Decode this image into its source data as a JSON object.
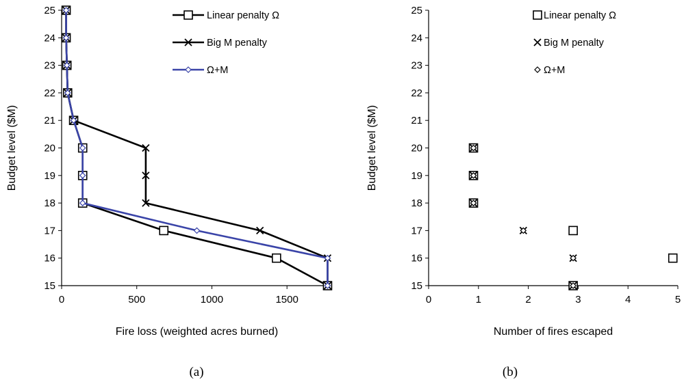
{
  "chart_data": [
    {
      "type": "line",
      "panel_label": "(a)",
      "xlabel": "Fire loss (weighted acres burned)",
      "ylabel": "Budget level ($M)",
      "xlim": [
        0,
        1800
      ],
      "ylim": [
        15,
        25
      ],
      "xticks": [
        "0",
        "500",
        "1000",
        "1500"
      ],
      "yticks": [
        "15",
        "16",
        "17",
        "18",
        "19",
        "20",
        "21",
        "22",
        "23",
        "24",
        "25"
      ],
      "grid": false,
      "legend_position": "top-right",
      "series": [
        {
          "name": "Linear penalty Ω",
          "color": "#000000",
          "marker": "square",
          "points": [
            [
              30,
              25
            ],
            [
              30,
              24
            ],
            [
              35,
              23
            ],
            [
              40,
              22
            ],
            [
              80,
              21
            ],
            [
              140,
              20
            ],
            [
              140,
              19
            ],
            [
              140,
              18
            ],
            [
              680,
              17
            ],
            [
              1430,
              16
            ],
            [
              1770,
              15
            ]
          ]
        },
        {
          "name": "Big M penalty",
          "color": "#000000",
          "marker": "x",
          "points": [
            [
              30,
              25
            ],
            [
              30,
              24
            ],
            [
              35,
              23
            ],
            [
              40,
              22
            ],
            [
              80,
              21
            ],
            [
              560,
              20
            ],
            [
              560,
              19
            ],
            [
              560,
              18
            ],
            [
              1320,
              17
            ],
            [
              1770,
              16
            ],
            [
              1770,
              15
            ]
          ]
        },
        {
          "name": "Ω+M",
          "color": "#3a44a8",
          "marker": "diamond",
          "points": [
            [
              30,
              25
            ],
            [
              30,
              24
            ],
            [
              35,
              23
            ],
            [
              40,
              22
            ],
            [
              80,
              21
            ],
            [
              140,
              20
            ],
            [
              140,
              19
            ],
            [
              140,
              18
            ],
            [
              900,
              17
            ],
            [
              1770,
              16
            ],
            [
              1770,
              15
            ]
          ]
        }
      ]
    },
    {
      "type": "scatter",
      "panel_label": "(b)",
      "xlabel": "Number of fires escaped",
      "ylabel": "Budget level ($M)",
      "xlim": [
        0,
        5
      ],
      "ylim": [
        15,
        25
      ],
      "xticks": [
        "0",
        "1",
        "2",
        "3",
        "4",
        "5"
      ],
      "yticks": [
        "15",
        "16",
        "17",
        "18",
        "19",
        "20",
        "21",
        "22",
        "23",
        "24",
        "25"
      ],
      "grid": false,
      "legend_position": "top-right",
      "series": [
        {
          "name": "Linear penalty Ω",
          "marker": "square",
          "points": [
            [
              0.9,
              20
            ],
            [
              0.9,
              19
            ],
            [
              0.9,
              18
            ],
            [
              2.9,
              17
            ],
            [
              4.9,
              16
            ],
            [
              2.9,
              15
            ]
          ]
        },
        {
          "name": "Big M penalty",
          "marker": "x",
          "points": [
            [
              0.9,
              20
            ],
            [
              0.9,
              19
            ],
            [
              0.9,
              18
            ],
            [
              1.9,
              17
            ],
            [
              2.9,
              16
            ],
            [
              2.9,
              15
            ]
          ]
        },
        {
          "name": "Ω+M",
          "marker": "diamond",
          "points": [
            [
              0.9,
              20
            ],
            [
              0.9,
              19
            ],
            [
              0.9,
              18
            ],
            [
              1.9,
              17
            ],
            [
              2.9,
              16
            ],
            [
              2.9,
              15
            ]
          ]
        }
      ]
    }
  ]
}
